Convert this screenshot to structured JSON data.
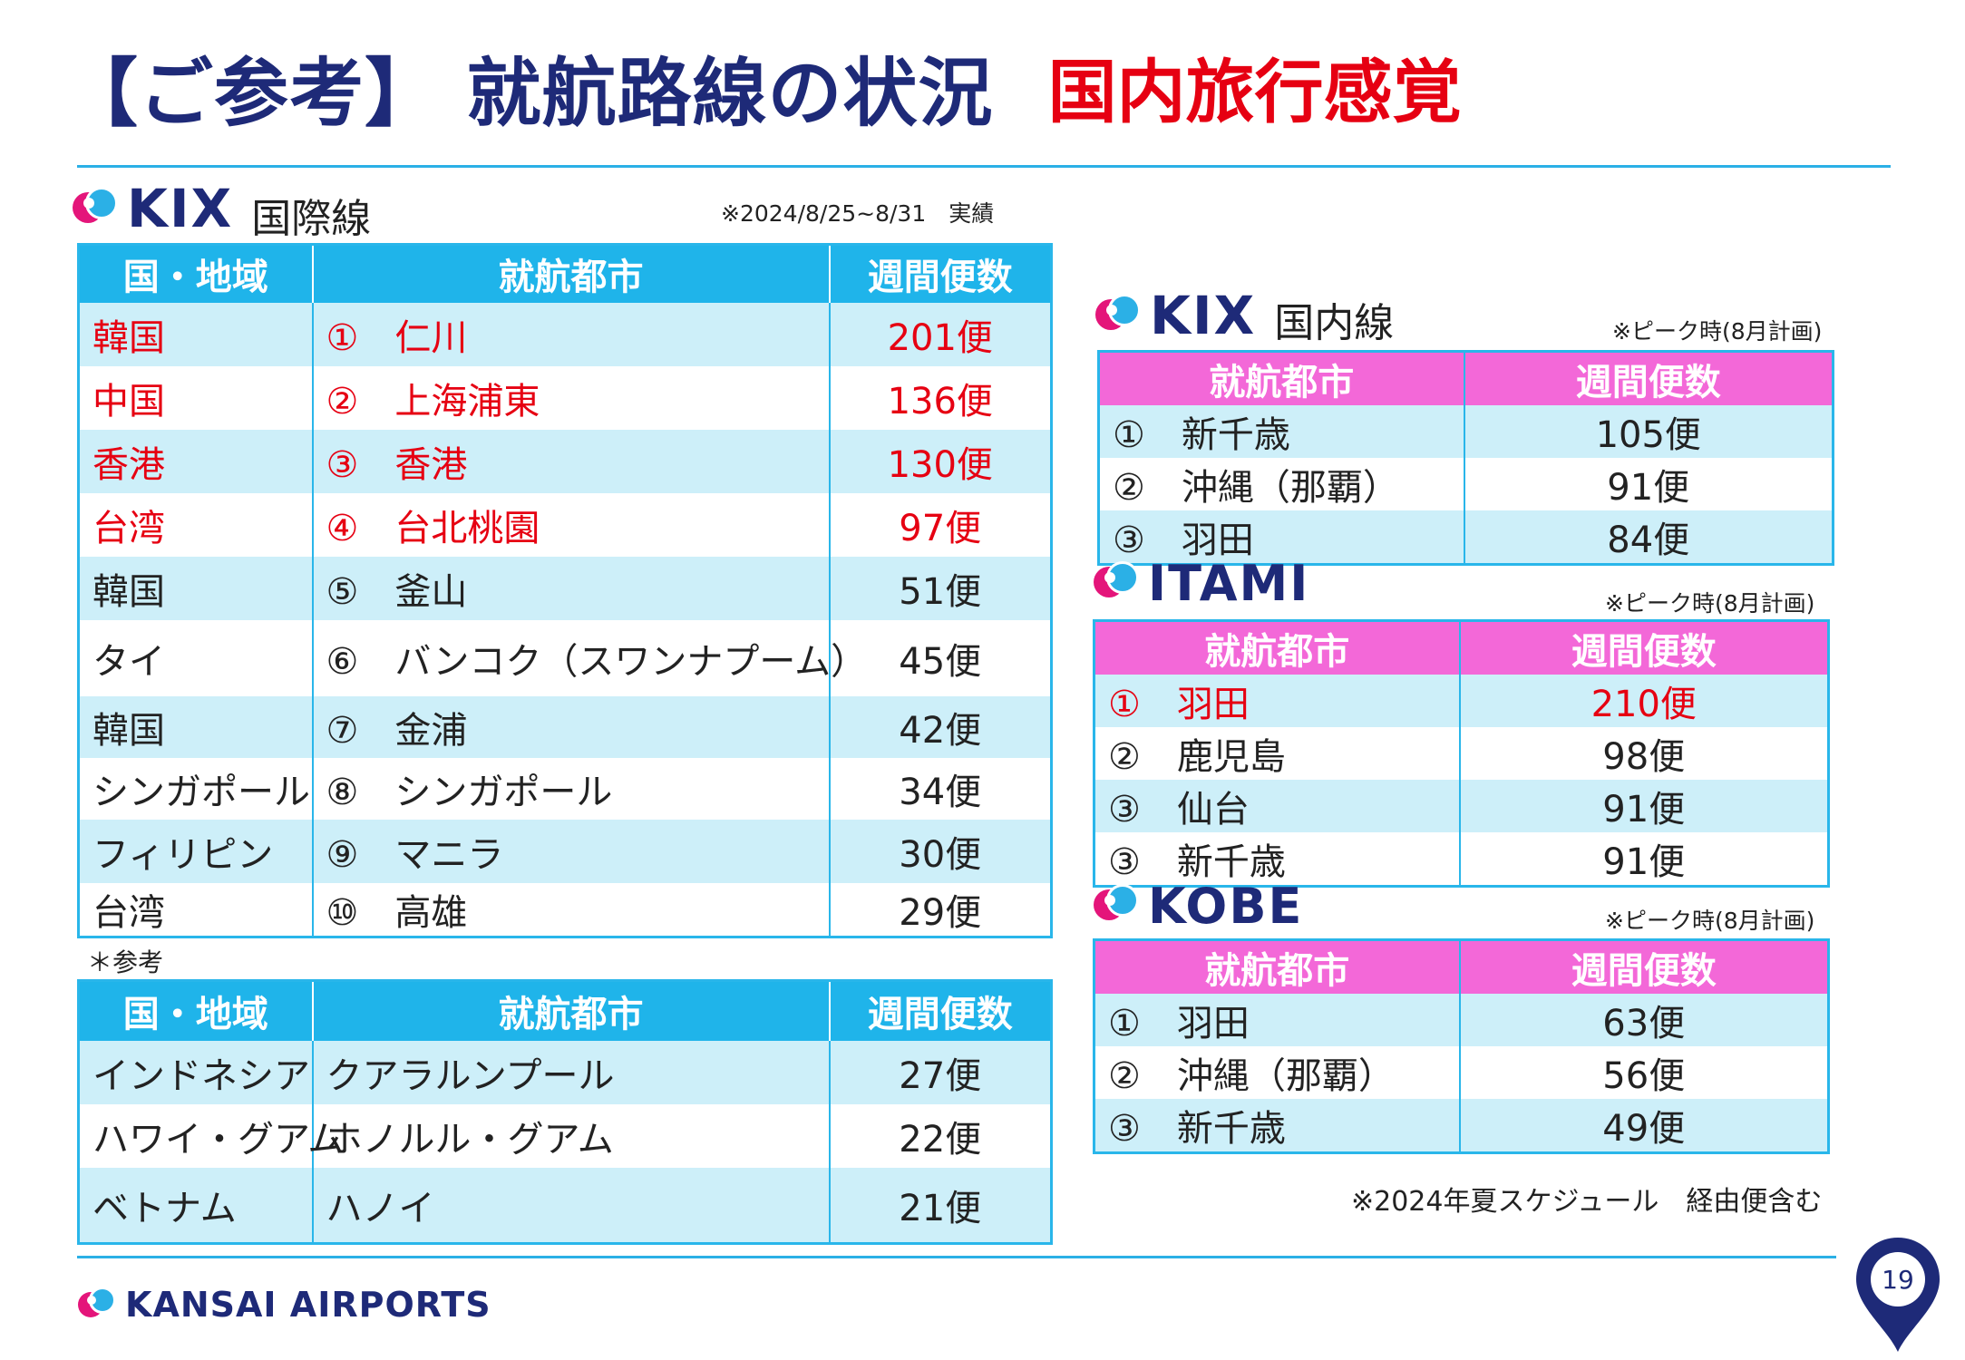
{
  "title": {
    "main": "【ご参考】 就航路線の状況",
    "accent": "国内旅行感覚"
  },
  "kix_intl": {
    "logo": "KIX",
    "subtitle": "国際線",
    "note": "※2024/8/25~8/31　実績",
    "headers": [
      "国・地域",
      "就航都市",
      "週間便数"
    ],
    "rows": [
      {
        "region": "韓国",
        "city": "①　仁川",
        "flights": "201便",
        "highlight": true
      },
      {
        "region": "中国",
        "city": "②　上海浦東",
        "flights": "136便",
        "highlight": true
      },
      {
        "region": "香港",
        "city": "③　香港",
        "flights": "130便",
        "highlight": true
      },
      {
        "region": "台湾",
        "city": "④　台北桃園",
        "flights": "97便",
        "highlight": true
      },
      {
        "region": "韓国",
        "city": "⑤　釜山",
        "flights": "51便",
        "highlight": false
      },
      {
        "region": "タイ",
        "city": "⑥　バンコク（スワンナプーム）",
        "flights": "45便",
        "highlight": false
      },
      {
        "region": "韓国",
        "city": "⑦　金浦",
        "flights": "42便",
        "highlight": false
      },
      {
        "region": "シンガポール",
        "city": "⑧　シンガポール",
        "flights": "34便",
        "highlight": false
      },
      {
        "region": "フィリピン",
        "city": "⑨　マニラ",
        "flights": "30便",
        "highlight": false
      },
      {
        "region": "台湾",
        "city": "⑩　高雄",
        "flights": "29便",
        "highlight": false
      }
    ]
  },
  "reference": {
    "label": "＊参考",
    "headers": [
      "国・地域",
      "就航都市",
      "週間便数"
    ],
    "rows": [
      {
        "region": "インドネシア",
        "city": "クアラルンプール",
        "flights": "27便"
      },
      {
        "region": "ハワイ・グアム",
        "city": "ホノルル・グアム",
        "flights": "22便"
      },
      {
        "region": "ベトナム",
        "city": "ハノイ",
        "flights": "21便"
      }
    ]
  },
  "kix_dom": {
    "logo": "KIX",
    "subtitle": "国内線",
    "note": "※ピーク時(8月計画)",
    "headers": [
      "就航都市",
      "週間便数"
    ],
    "rows": [
      {
        "city": "①　新千歳",
        "flights": "105便"
      },
      {
        "city": "②　沖縄（那覇）",
        "flights": "91便"
      },
      {
        "city": "③　羽田",
        "flights": "84便"
      }
    ]
  },
  "itami": {
    "logo": "ITAMI",
    "note": "※ピーク時(8月計画)",
    "headers": [
      "就航都市",
      "週間便数"
    ],
    "rows": [
      {
        "city": "①　羽田",
        "flights": "210便",
        "highlight": true
      },
      {
        "city": "②　鹿児島",
        "flights": "98便",
        "highlight": false
      },
      {
        "city": "③　仙台",
        "flights": "91便",
        "highlight": false
      },
      {
        "city": "③　新千歳",
        "flights": "91便",
        "highlight": false
      }
    ]
  },
  "kobe": {
    "logo": "KOBE",
    "note": "※ピーク時(8月計画)",
    "headers": [
      "就航都市",
      "週間便数"
    ],
    "rows": [
      {
        "city": "①　羽田",
        "flights": "63便"
      },
      {
        "city": "②　沖縄（那覇）",
        "flights": "56便"
      },
      {
        "city": "③　新千歳",
        "flights": "49便"
      }
    ]
  },
  "schedule_note": "※2024年夏スケジュール　経由便含む",
  "footer": {
    "brand": "KANSAI AIRPORTS",
    "page": "19"
  },
  "colors": {
    "navy": "#1e2a78",
    "red": "#e60012",
    "cyan": "#1fb4ea",
    "pink": "#f368d8",
    "light_cyan": "#cdeff9"
  }
}
